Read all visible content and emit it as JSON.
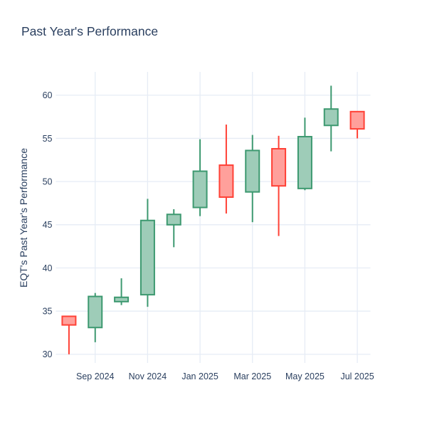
{
  "chart_data": {
    "type": "candlestick",
    "title": "Past Year's Performance",
    "ylabel": "EQT's Past Year's Performance",
    "xlabel": "",
    "categories": [
      "Aug 2024",
      "Sep 2024",
      "Oct 2024",
      "Nov 2024",
      "Dec 2024",
      "Jan 2025",
      "Feb 2025",
      "Mar 2025",
      "Apr 2025",
      "May 2025",
      "Jun 2025",
      "Jul 2025"
    ],
    "open": [
      34.4,
      33.1,
      36.1,
      36.9,
      45.0,
      47.0,
      51.9,
      48.8,
      53.8,
      49.2,
      56.5,
      58.1
    ],
    "high": [
      34.4,
      37.1,
      38.8,
      48.0,
      46.8,
      54.9,
      56.6,
      55.4,
      55.3,
      57.4,
      61.1,
      58.1
    ],
    "low": [
      30.0,
      31.4,
      35.7,
      35.5,
      42.4,
      46.0,
      46.3,
      45.3,
      43.7,
      49.0,
      53.5,
      55.0
    ],
    "close": [
      33.4,
      36.7,
      36.6,
      45.5,
      46.2,
      51.2,
      48.2,
      53.6,
      49.5,
      55.2,
      58.4,
      56.1
    ],
    "y_ticks": [
      30,
      35,
      40,
      45,
      50,
      55,
      60
    ],
    "ylim": [
      29.0,
      62.7
    ],
    "x_ticks": [
      {
        "label": "Sep 2024",
        "category_index": 1
      },
      {
        "label": "Nov 2024",
        "category_index": 3
      },
      {
        "label": "Jan 2025",
        "category_index": 5
      },
      {
        "label": "Mar 2025",
        "category_index": 7
      },
      {
        "label": "May 2025",
        "category_index": 9
      },
      {
        "label": "Jul 2025",
        "category_index": 11
      }
    ],
    "grid": true,
    "legend": false,
    "colors": {
      "increasing_line": "#3D9970",
      "increasing_fill": "#9ECCB8",
      "decreasing_line": "#FF4136",
      "decreasing_fill": "#FFA09B",
      "grid": "#E6ECF5",
      "text": "#2A3F5F",
      "background": "#FFFFFF"
    }
  }
}
